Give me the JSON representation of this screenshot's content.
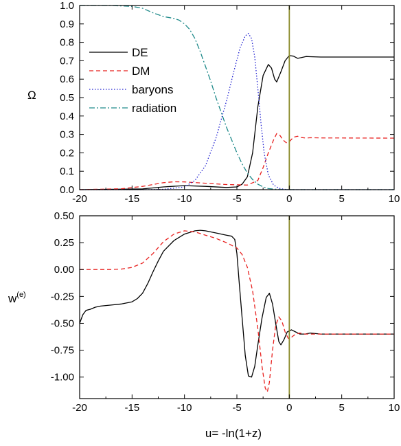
{
  "chart_data": [
    {
      "panel": "top",
      "type": "line",
      "xlim": [
        -20,
        10
      ],
      "ylim": [
        0,
        1
      ],
      "x_ticks": [
        -20,
        -15,
        -10,
        -5,
        0,
        5,
        10
      ],
      "y_ticks": [
        0.0,
        0.1,
        0.2,
        0.3,
        0.4,
        0.5,
        0.6,
        0.7,
        0.8,
        0.9,
        1.0
      ],
      "x_tick_labels": [
        "-20",
        "-15",
        "-10",
        "-5",
        "0",
        "5",
        "10"
      ],
      "y_tick_labels": [
        "0.0",
        "0.1",
        "0.2",
        "0.3",
        "0.4",
        "0.5",
        "0.6",
        "0.7",
        "0.8",
        "0.9",
        "1.0"
      ],
      "ylabel": "Ω",
      "vline_x": 0,
      "vline_color": "#8b8b2a",
      "legend_position": "top-left",
      "series": [
        {
          "name": "DE",
          "color": "#000000",
          "dash": "solid",
          "points": [
            [
              -20,
              0.0
            ],
            [
              -14,
              0.004
            ],
            [
              -12,
              0.015
            ],
            [
              -10,
              0.022
            ],
            [
              -8,
              0.018
            ],
            [
              -6,
              0.012
            ],
            [
              -5,
              0.015
            ],
            [
              -4.5,
              0.03
            ],
            [
              -4,
              0.07
            ],
            [
              -3.5,
              0.2
            ],
            [
              -3,
              0.45
            ],
            [
              -2.5,
              0.62
            ],
            [
              -2,
              0.68
            ],
            [
              -1.7,
              0.66
            ],
            [
              -1.4,
              0.6
            ],
            [
              -1.2,
              0.585
            ],
            [
              -0.8,
              0.64
            ],
            [
              -0.4,
              0.7
            ],
            [
              0,
              0.728
            ],
            [
              0.4,
              0.725
            ],
            [
              0.8,
              0.713
            ],
            [
              1.2,
              0.718
            ],
            [
              1.6,
              0.723
            ],
            [
              2,
              0.722
            ],
            [
              3,
              0.72
            ],
            [
              10,
              0.72
            ]
          ]
        },
        {
          "name": "DM",
          "color": "#e8211f",
          "dash": "dashed",
          "points": [
            [
              -20,
              0.0
            ],
            [
              -16,
              0.005
            ],
            [
              -14,
              0.018
            ],
            [
              -12,
              0.038
            ],
            [
              -11,
              0.043
            ],
            [
              -10,
              0.042
            ],
            [
              -8,
              0.035
            ],
            [
              -6,
              0.028
            ],
            [
              -4,
              0.025
            ],
            [
              -3,
              0.05
            ],
            [
              -2.5,
              0.12
            ],
            [
              -2,
              0.2
            ],
            [
              -1.5,
              0.27
            ],
            [
              -1.2,
              0.305
            ],
            [
              -0.9,
              0.295
            ],
            [
              -0.6,
              0.27
            ],
            [
              -0.3,
              0.255
            ],
            [
              0,
              0.26
            ],
            [
              0.4,
              0.285
            ],
            [
              0.8,
              0.29
            ],
            [
              1.2,
              0.283
            ],
            [
              1.6,
              0.28
            ],
            [
              2,
              0.282
            ],
            [
              3,
              0.281
            ],
            [
              10,
              0.28
            ]
          ]
        },
        {
          "name": "baryons",
          "color": "#1c1cd0",
          "dash": "dotted",
          "points": [
            [
              -20,
              0.0
            ],
            [
              -14,
              0.0
            ],
            [
              -12,
              0.002
            ],
            [
              -10,
              0.015
            ],
            [
              -9,
              0.05
            ],
            [
              -8,
              0.13
            ],
            [
              -7,
              0.28
            ],
            [
              -6,
              0.48
            ],
            [
              -5.3,
              0.64
            ],
            [
              -4.7,
              0.77
            ],
            [
              -4.2,
              0.835
            ],
            [
              -3.9,
              0.848
            ],
            [
              -3.6,
              0.82
            ],
            [
              -3.3,
              0.72
            ],
            [
              -3,
              0.55
            ],
            [
              -2.7,
              0.36
            ],
            [
              -2.4,
              0.2
            ],
            [
              -2,
              0.08
            ],
            [
              -1.5,
              0.025
            ],
            [
              -1,
              0.008
            ],
            [
              -0.5,
              0.002
            ],
            [
              0,
              0.0
            ],
            [
              10,
              0.0
            ]
          ]
        },
        {
          "name": "radiation",
          "color": "#1f8a8a",
          "dash": "dashdot",
          "points": [
            [
              -20,
              1.0
            ],
            [
              -17,
              1.0
            ],
            [
              -15,
              0.995
            ],
            [
              -14,
              0.985
            ],
            [
              -13,
              0.96
            ],
            [
              -12,
              0.94
            ],
            [
              -11,
              0.93
            ],
            [
              -10.5,
              0.92
            ],
            [
              -10,
              0.9
            ],
            [
              -9.5,
              0.87
            ],
            [
              -9,
              0.82
            ],
            [
              -8.5,
              0.75
            ],
            [
              -8,
              0.67
            ],
            [
              -7.5,
              0.59
            ],
            [
              -7,
              0.5
            ],
            [
              -6.5,
              0.42
            ],
            [
              -6,
              0.34
            ],
            [
              -5.5,
              0.27
            ],
            [
              -5,
              0.2
            ],
            [
              -4.5,
              0.14
            ],
            [
              -4,
              0.09
            ],
            [
              -3.5,
              0.055
            ],
            [
              -3,
              0.03
            ],
            [
              -2.5,
              0.015
            ],
            [
              -2,
              0.006
            ],
            [
              -1,
              0.001
            ],
            [
              0,
              0.0
            ],
            [
              10,
              0.0
            ]
          ]
        }
      ]
    },
    {
      "panel": "bottom",
      "type": "line",
      "xlim": [
        -20,
        10
      ],
      "ylim": [
        -1.2,
        0.5
      ],
      "x_ticks": [
        -20,
        -15,
        -10,
        -5,
        0,
        5,
        10
      ],
      "y_ticks": [
        0.5,
        0.25,
        0.0,
        -0.25,
        -0.5,
        -0.75,
        -1.0
      ],
      "x_tick_labels": [
        "-20",
        "-15",
        "-10",
        "-5",
        "0",
        "5",
        "10"
      ],
      "y_tick_labels": [
        "0.50",
        "0.25",
        "0.00",
        "-0.25",
        "-0.50",
        "-0.75",
        "-1.00"
      ],
      "ylabel": "w",
      "ylabel_superscript": "(e)",
      "xlabel": "u= -ln(1+z)",
      "vline_x": 0,
      "vline_color": "#8b8b2a",
      "series": [
        {
          "name": "DE",
          "color": "#000000",
          "dash": "solid",
          "points": [
            [
              -20,
              -0.5
            ],
            [
              -19.7,
              -0.42
            ],
            [
              -19.4,
              -0.38
            ],
            [
              -19,
              -0.37
            ],
            [
              -18.5,
              -0.35
            ],
            [
              -18,
              -0.34
            ],
            [
              -17,
              -0.33
            ],
            [
              -16,
              -0.32
            ],
            [
              -15,
              -0.3
            ],
            [
              -14.5,
              -0.27
            ],
            [
              -14,
              -0.22
            ],
            [
              -13.5,
              -0.13
            ],
            [
              -13,
              -0.02
            ],
            [
              -12.5,
              0.08
            ],
            [
              -12,
              0.17
            ],
            [
              -11,
              0.27
            ],
            [
              -10,
              0.33
            ],
            [
              -9,
              0.36
            ],
            [
              -8.5,
              0.365
            ],
            [
              -8,
              0.36
            ],
            [
              -7,
              0.34
            ],
            [
              -6,
              0.32
            ],
            [
              -5.5,
              0.31
            ],
            [
              -5.2,
              0.28
            ],
            [
              -5,
              0.15
            ],
            [
              -4.8,
              -0.1
            ],
            [
              -4.5,
              -0.45
            ],
            [
              -4.2,
              -0.8
            ],
            [
              -3.9,
              -0.99
            ],
            [
              -3.6,
              -1.0
            ],
            [
              -3.3,
              -0.9
            ],
            [
              -3,
              -0.7
            ],
            [
              -2.6,
              -0.45
            ],
            [
              -2.2,
              -0.26
            ],
            [
              -1.9,
              -0.22
            ],
            [
              -1.6,
              -0.32
            ],
            [
              -1.3,
              -0.5
            ],
            [
              -1,
              -0.67
            ],
            [
              -0.8,
              -0.7
            ],
            [
              -0.5,
              -0.65
            ],
            [
              -0.2,
              -0.58
            ],
            [
              0.2,
              -0.56
            ],
            [
              0.6,
              -0.58
            ],
            [
              1,
              -0.6
            ],
            [
              1.5,
              -0.6
            ],
            [
              2,
              -0.59
            ],
            [
              3,
              -0.6
            ],
            [
              10,
              -0.6
            ]
          ]
        },
        {
          "name": "DM",
          "color": "#e8211f",
          "dash": "dashed",
          "points": [
            [
              -20,
              0.0
            ],
            [
              -17,
              0.0
            ],
            [
              -16,
              0.005
            ],
            [
              -15,
              0.02
            ],
            [
              -14,
              0.06
            ],
            [
              -13,
              0.15
            ],
            [
              -12,
              0.26
            ],
            [
              -11,
              0.33
            ],
            [
              -10,
              0.36
            ],
            [
              -9,
              0.35
            ],
            [
              -8,
              0.32
            ],
            [
              -7,
              0.29
            ],
            [
              -6,
              0.25
            ],
            [
              -5,
              0.2
            ],
            [
              -4.5,
              0.14
            ],
            [
              -4,
              0.02
            ],
            [
              -3.5,
              -0.2
            ],
            [
              -3,
              -0.55
            ],
            [
              -2.6,
              -0.9
            ],
            [
              -2.3,
              -1.1
            ],
            [
              -2.1,
              -1.14
            ],
            [
              -1.9,
              -1.05
            ],
            [
              -1.6,
              -0.75
            ],
            [
              -1.3,
              -0.52
            ],
            [
              -1,
              -0.44
            ],
            [
              -0.7,
              -0.48
            ],
            [
              -0.4,
              -0.58
            ],
            [
              -0.1,
              -0.64
            ],
            [
              0.2,
              -0.63
            ],
            [
              0.6,
              -0.6
            ],
            [
              1,
              -0.59
            ],
            [
              1.5,
              -0.6
            ],
            [
              2,
              -0.6
            ],
            [
              10,
              -0.6
            ]
          ]
        }
      ]
    }
  ]
}
